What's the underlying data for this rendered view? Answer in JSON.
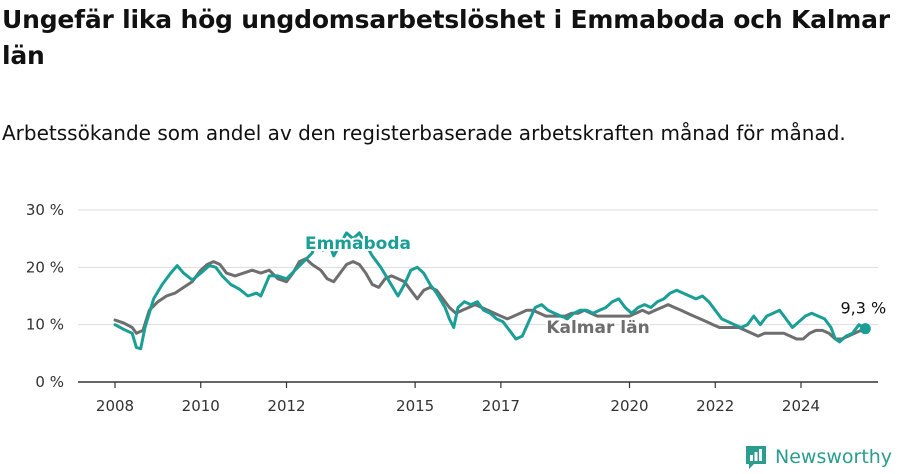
{
  "title": "Ungefär lika hög ungdomsarbetslöshet i Emmaboda och Kalmar län",
  "subtitle": "Arbetssökande som andel av den registerbaserade arbetskraften månad för månad.",
  "brand": {
    "name": "Newsworthy",
    "icon": "newsworthy-logo-icon"
  },
  "colors": {
    "emmaboda": "#1a9e95",
    "kalmar": "#6e6e6e",
    "grid": "#dddddd",
    "axis": "#333333",
    "brand": "#2a9d8f"
  },
  "chart_data": {
    "type": "line",
    "title": "Ungefär lika hög ungdomsarbetslöshet i Emmaboda och Kalmar län",
    "subtitle": "Arbetssökande som andel av den registerbaserade arbetskraften månad för månad.",
    "xlabel": "",
    "ylabel": "",
    "x_range": [
      2007.2,
      2025.7
    ],
    "ylim": [
      0,
      30
    ],
    "y_ticks": [
      0,
      10,
      20,
      30
    ],
    "y_tick_labels": [
      "0 %",
      "10 %",
      "20 %",
      "30 %"
    ],
    "x_ticks": [
      2008,
      2010,
      2012,
      2015,
      2017,
      2020,
      2022,
      2024
    ],
    "x_tick_labels": [
      "2008",
      "2010",
      "2012",
      "2015",
      "2017",
      "2020",
      "2022",
      "2024"
    ],
    "grid": true,
    "legend": "labels on lines",
    "end_value_label": "9,3 %",
    "series": [
      {
        "name": "Emmaboda",
        "color": "#1a9e95",
        "points": [
          [
            2008.0,
            10.0
          ],
          [
            2008.2,
            9.2
          ],
          [
            2008.4,
            8.5
          ],
          [
            2008.5,
            6.0
          ],
          [
            2008.6,
            5.8
          ],
          [
            2008.7,
            9.5
          ],
          [
            2008.9,
            14.5
          ],
          [
            2009.1,
            17.0
          ],
          [
            2009.3,
            19.0
          ],
          [
            2009.45,
            20.3
          ],
          [
            2009.6,
            19.0
          ],
          [
            2009.8,
            17.8
          ],
          [
            2010.0,
            19.0
          ],
          [
            2010.2,
            20.3
          ],
          [
            2010.35,
            20.0
          ],
          [
            2010.5,
            18.5
          ],
          [
            2010.7,
            17.0
          ],
          [
            2010.9,
            16.2
          ],
          [
            2011.1,
            15.0
          ],
          [
            2011.3,
            15.5
          ],
          [
            2011.4,
            15.0
          ],
          [
            2011.6,
            18.5
          ],
          [
            2011.8,
            18.5
          ],
          [
            2012.0,
            18.0
          ],
          [
            2012.2,
            19.5
          ],
          [
            2012.4,
            21.0
          ],
          [
            2012.6,
            22.5
          ],
          [
            2012.7,
            25.0
          ],
          [
            2012.85,
            23.0
          ],
          [
            2013.0,
            24.0
          ],
          [
            2013.1,
            22.0
          ],
          [
            2013.25,
            24.0
          ],
          [
            2013.4,
            26.0
          ],
          [
            2013.55,
            25.0
          ],
          [
            2013.7,
            26.0
          ],
          [
            2013.85,
            24.0
          ],
          [
            2014.0,
            22.0
          ],
          [
            2014.2,
            20.0
          ],
          [
            2014.4,
            17.5
          ],
          [
            2014.6,
            15.0
          ],
          [
            2014.75,
            17.0
          ],
          [
            2014.9,
            19.5
          ],
          [
            2015.05,
            20.0
          ],
          [
            2015.2,
            19.0
          ],
          [
            2015.35,
            17.0
          ],
          [
            2015.5,
            15.5
          ],
          [
            2015.7,
            13.0
          ],
          [
            2015.8,
            11.0
          ],
          [
            2015.9,
            9.5
          ],
          [
            2016.0,
            13.0
          ],
          [
            2016.15,
            14.0
          ],
          [
            2016.3,
            13.5
          ],
          [
            2016.45,
            14.0
          ],
          [
            2016.6,
            12.5
          ],
          [
            2016.75,
            12.0
          ],
          [
            2016.9,
            11.0
          ],
          [
            2017.05,
            10.5
          ],
          [
            2017.2,
            9.0
          ],
          [
            2017.35,
            7.5
          ],
          [
            2017.5,
            8.0
          ],
          [
            2017.65,
            10.5
          ],
          [
            2017.8,
            13.0
          ],
          [
            2017.95,
            13.5
          ],
          [
            2018.1,
            12.5
          ],
          [
            2018.25,
            12.0
          ],
          [
            2018.4,
            11.5
          ],
          [
            2018.55,
            11.0
          ],
          [
            2018.7,
            12.0
          ],
          [
            2018.85,
            12.5
          ],
          [
            2019.0,
            12.5
          ],
          [
            2019.15,
            12.0
          ],
          [
            2019.3,
            12.5
          ],
          [
            2019.45,
            13.0
          ],
          [
            2019.6,
            14.0
          ],
          [
            2019.75,
            14.5
          ],
          [
            2019.9,
            13.0
          ],
          [
            2020.05,
            12.0
          ],
          [
            2020.2,
            13.0
          ],
          [
            2020.35,
            13.5
          ],
          [
            2020.5,
            13.0
          ],
          [
            2020.65,
            14.0
          ],
          [
            2020.8,
            14.5
          ],
          [
            2020.95,
            15.5
          ],
          [
            2021.1,
            16.0
          ],
          [
            2021.25,
            15.5
          ],
          [
            2021.4,
            15.0
          ],
          [
            2021.55,
            14.5
          ],
          [
            2021.7,
            15.0
          ],
          [
            2021.85,
            14.0
          ],
          [
            2022.0,
            12.5
          ],
          [
            2022.15,
            11.0
          ],
          [
            2022.3,
            10.5
          ],
          [
            2022.45,
            10.0
          ],
          [
            2022.6,
            9.5
          ],
          [
            2022.75,
            10.0
          ],
          [
            2022.9,
            11.5
          ],
          [
            2023.05,
            10.0
          ],
          [
            2023.2,
            11.5
          ],
          [
            2023.35,
            12.0
          ],
          [
            2023.5,
            12.5
          ],
          [
            2023.65,
            11.0
          ],
          [
            2023.8,
            9.5
          ],
          [
            2023.95,
            10.5
          ],
          [
            2024.1,
            11.5
          ],
          [
            2024.25,
            12.0
          ],
          [
            2024.4,
            11.5
          ],
          [
            2024.55,
            11.0
          ],
          [
            2024.7,
            9.5
          ],
          [
            2024.8,
            7.5
          ],
          [
            2024.9,
            7.0
          ],
          [
            2025.05,
            8.0
          ],
          [
            2025.2,
            8.5
          ],
          [
            2025.35,
            10.0
          ],
          [
            2025.5,
            9.3
          ]
        ]
      },
      {
        "name": "Kalmar län",
        "color": "#6e6e6e",
        "points": [
          [
            2008.0,
            10.8
          ],
          [
            2008.2,
            10.3
          ],
          [
            2008.4,
            9.5
          ],
          [
            2008.5,
            8.5
          ],
          [
            2008.65,
            9.0
          ],
          [
            2008.8,
            12.5
          ],
          [
            2009.0,
            14.0
          ],
          [
            2009.2,
            15.0
          ],
          [
            2009.4,
            15.5
          ],
          [
            2009.6,
            16.5
          ],
          [
            2009.8,
            17.5
          ],
          [
            2010.0,
            19.5
          ],
          [
            2010.15,
            20.5
          ],
          [
            2010.3,
            21.0
          ],
          [
            2010.45,
            20.5
          ],
          [
            2010.6,
            19.0
          ],
          [
            2010.8,
            18.5
          ],
          [
            2011.0,
            19.0
          ],
          [
            2011.2,
            19.5
          ],
          [
            2011.4,
            19.0
          ],
          [
            2011.6,
            19.5
          ],
          [
            2011.8,
            18.0
          ],
          [
            2012.0,
            17.5
          ],
          [
            2012.15,
            19.0
          ],
          [
            2012.3,
            21.0
          ],
          [
            2012.45,
            21.5
          ],
          [
            2012.6,
            20.5
          ],
          [
            2012.8,
            19.5
          ],
          [
            2012.95,
            18.0
          ],
          [
            2013.1,
            17.5
          ],
          [
            2013.25,
            19.0
          ],
          [
            2013.4,
            20.5
          ],
          [
            2013.55,
            21.0
          ],
          [
            2013.7,
            20.5
          ],
          [
            2013.85,
            19.0
          ],
          [
            2014.0,
            17.0
          ],
          [
            2014.15,
            16.5
          ],
          [
            2014.3,
            18.0
          ],
          [
            2014.45,
            18.5
          ],
          [
            2014.6,
            18.0
          ],
          [
            2014.75,
            17.5
          ],
          [
            2014.9,
            16.0
          ],
          [
            2015.05,
            14.5
          ],
          [
            2015.2,
            16.0
          ],
          [
            2015.35,
            16.5
          ],
          [
            2015.5,
            16.0
          ],
          [
            2015.65,
            14.5
          ],
          [
            2015.8,
            13.0
          ],
          [
            2015.95,
            12.0
          ],
          [
            2016.1,
            12.5
          ],
          [
            2016.25,
            13.0
          ],
          [
            2016.4,
            13.5
          ],
          [
            2016.55,
            13.0
          ],
          [
            2016.7,
            12.5
          ],
          [
            2016.85,
            12.0
          ],
          [
            2017.0,
            11.5
          ],
          [
            2017.15,
            11.0
          ],
          [
            2017.3,
            11.5
          ],
          [
            2017.45,
            12.0
          ],
          [
            2017.6,
            12.5
          ],
          [
            2017.75,
            12.5
          ],
          [
            2017.9,
            12.0
          ],
          [
            2018.05,
            11.5
          ],
          [
            2018.2,
            11.5
          ],
          [
            2018.35,
            11.5
          ],
          [
            2018.5,
            11.5
          ],
          [
            2018.65,
            12.0
          ],
          [
            2018.8,
            12.0
          ],
          [
            2018.95,
            12.5
          ],
          [
            2019.1,
            12.0
          ],
          [
            2019.25,
            11.5
          ],
          [
            2019.4,
            11.5
          ],
          [
            2019.55,
            11.5
          ],
          [
            2019.7,
            11.5
          ],
          [
            2019.85,
            11.5
          ],
          [
            2020.0,
            11.5
          ],
          [
            2020.15,
            12.0
          ],
          [
            2020.3,
            12.5
          ],
          [
            2020.45,
            12.0
          ],
          [
            2020.6,
            12.5
          ],
          [
            2020.75,
            13.0
          ],
          [
            2020.9,
            13.5
          ],
          [
            2021.05,
            13.0
          ],
          [
            2021.2,
            12.5
          ],
          [
            2021.35,
            12.0
          ],
          [
            2021.5,
            11.5
          ],
          [
            2021.65,
            11.0
          ],
          [
            2021.8,
            10.5
          ],
          [
            2021.95,
            10.0
          ],
          [
            2022.1,
            9.5
          ],
          [
            2022.25,
            9.5
          ],
          [
            2022.4,
            9.5
          ],
          [
            2022.55,
            9.5
          ],
          [
            2022.7,
            9.0
          ],
          [
            2022.85,
            8.5
          ],
          [
            2023.0,
            8.0
          ],
          [
            2023.15,
            8.5
          ],
          [
            2023.3,
            8.5
          ],
          [
            2023.45,
            8.5
          ],
          [
            2023.6,
            8.5
          ],
          [
            2023.75,
            8.0
          ],
          [
            2023.9,
            7.5
          ],
          [
            2024.05,
            7.5
          ],
          [
            2024.2,
            8.5
          ],
          [
            2024.35,
            9.0
          ],
          [
            2024.5,
            9.0
          ],
          [
            2024.65,
            8.5
          ],
          [
            2024.8,
            7.5
          ],
          [
            2024.95,
            7.5
          ],
          [
            2025.1,
            8.0
          ],
          [
            2025.25,
            8.5
          ],
          [
            2025.4,
            9.0
          ]
        ]
      }
    ]
  }
}
